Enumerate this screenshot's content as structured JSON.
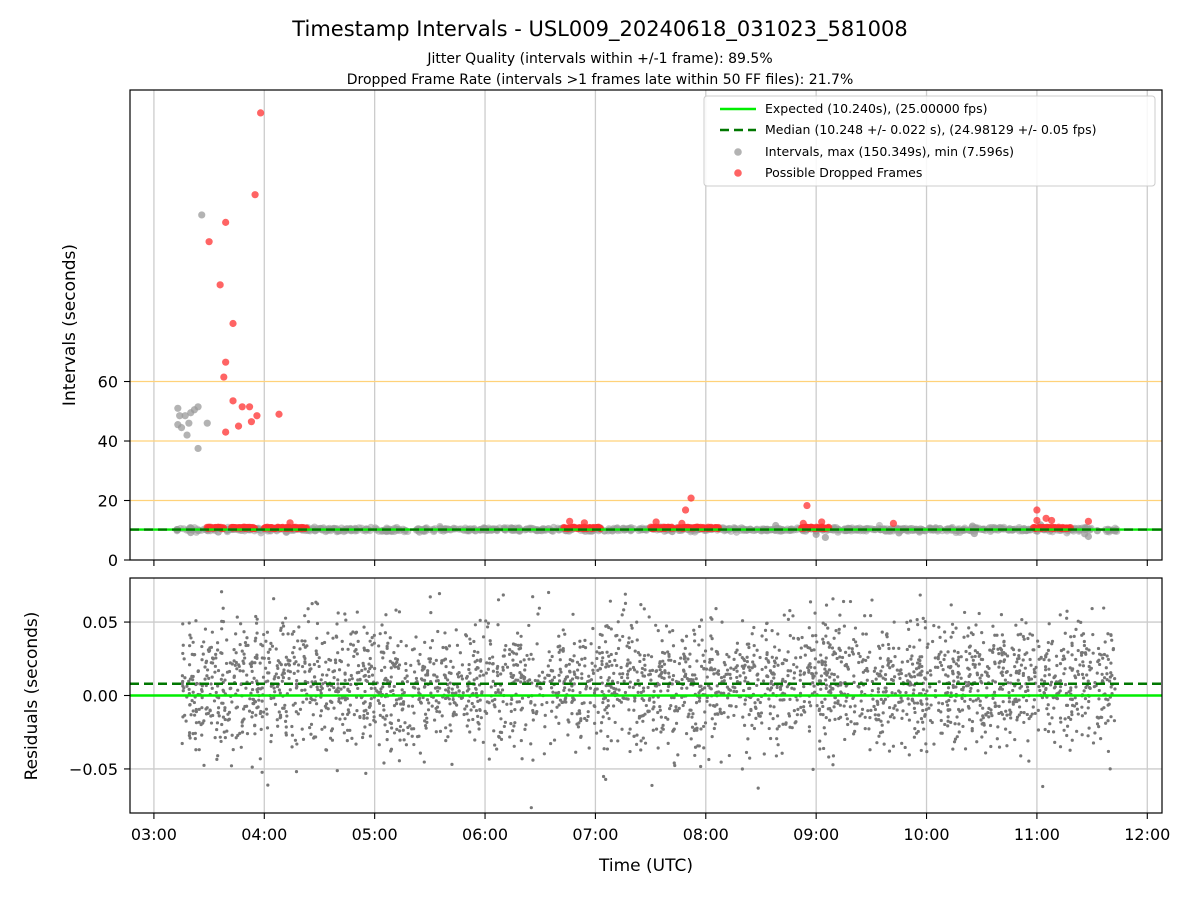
{
  "figure": {
    "title": "Timestamp Intervals - USL009_20240618_031023_581008",
    "subtitle_1": "Jitter Quality (intervals within +/-1 frame): 89.5%",
    "subtitle_2": "Dropped Frame Rate (intervals >1 frames late within 50 FF files): 21.7%",
    "xlabel": "Time (UTC)"
  },
  "colors": {
    "expected": "#00ee00",
    "median": "#007700",
    "intervals": "#999999",
    "dropped": "#ff3030",
    "threshold": "#ffd27a",
    "grid": "#cccccc",
    "residuals": "#777777"
  },
  "chart_data": [
    {
      "type": "scatter",
      "ylabel": "Intervals (seconds)",
      "xlim": [
        "02:47",
        "12:08"
      ],
      "ylim": [
        0,
        158
      ],
      "x_ticks": [
        "03:00",
        "04:00",
        "05:00",
        "06:00",
        "07:00",
        "08:00",
        "09:00",
        "10:00",
        "11:00",
        "12:00"
      ],
      "y_ticks": [
        0,
        20,
        40,
        60
      ],
      "grid": true,
      "legend_position": "top-right",
      "threshold_lines": [
        20,
        40,
        60
      ],
      "expected_line": {
        "label": "Expected (10.240s), (25.00000 fps)",
        "y": 10.24
      },
      "median_line": {
        "label": "Median (10.248 +/- 0.022 s), (24.98129 +/- 0.05 fps)",
        "y": 10.248
      },
      "series": [
        {
          "name": "Intervals, max (150.349s), min (7.596s)",
          "points": [
            [
              "03:13",
              51
            ],
            [
              "03:14",
              48.5
            ],
            [
              "03:13",
              45.5
            ],
            [
              "03:15",
              44.5
            ],
            [
              "03:17",
              48.5
            ],
            [
              "03:18",
              42
            ],
            [
              "03:19",
              46
            ],
            [
              "03:20",
              49.5
            ],
            [
              "03:22",
              50.5
            ],
            [
              "03:24",
              51.5
            ],
            [
              "03:24",
              37.5
            ],
            [
              "03:26",
              116
            ],
            [
              "03:29",
              46
            ],
            [
              "03:20",
              9.2
            ],
            [
              "03:35",
              9.4
            ],
            [
              "04:12",
              9.3
            ],
            [
              "08:38",
              11.6
            ],
            [
              "09:00",
              8.6
            ],
            [
              "09:05",
              7.6
            ],
            [
              "10:05",
              10.8
            ],
            [
              "10:25",
              11.4
            ],
            [
              "10:26",
              8.9
            ],
            [
              "09:45",
              9.1
            ],
            [
              "11:26",
              8.8
            ],
            [
              "11:28",
              7.9
            ],
            [
              "11:02",
              11.8
            ]
          ]
        },
        {
          "name": "Possible Dropped Frames",
          "points": [
            [
              "03:58",
              150.3
            ],
            [
              "03:55",
              122.8
            ],
            [
              "03:39",
              113.5
            ],
            [
              "03:30",
              107
            ],
            [
              "03:36",
              92.5
            ],
            [
              "03:43",
              79.5
            ],
            [
              "03:39",
              66.5
            ],
            [
              "03:38",
              61.5
            ],
            [
              "03:43",
              53.5
            ],
            [
              "03:46",
              45
            ],
            [
              "03:48",
              51.5
            ],
            [
              "03:52",
              51.5
            ],
            [
              "03:56",
              48.5
            ],
            [
              "03:53",
              46.5
            ],
            [
              "03:39",
              43
            ],
            [
              "04:08",
              49
            ],
            [
              "04:14",
              12.5
            ],
            [
              "06:46",
              13
            ],
            [
              "06:54",
              12.5
            ],
            [
              "07:33",
              12.8
            ],
            [
              "07:47",
              12.3
            ],
            [
              "07:49",
              16.8
            ],
            [
              "07:52",
              20.8
            ],
            [
              "08:53",
              12.3
            ],
            [
              "08:55",
              18.3
            ],
            [
              "09:03",
              12.8
            ],
            [
              "09:42",
              12.3
            ],
            [
              "11:00",
              16.8
            ],
            [
              "11:05",
              14
            ],
            [
              "11:08",
              13.3
            ],
            [
              "11:00",
              13.3
            ],
            [
              "11:28",
              13
            ]
          ],
          "clusters_near_expected": [
            [
              "03:29",
              "03:38"
            ],
            [
              "03:42",
              "03:55"
            ],
            [
              "04:00",
              "04:23"
            ],
            [
              "06:43",
              "07:03"
            ],
            [
              "07:30",
              "07:42"
            ],
            [
              "07:45",
              "08:07"
            ],
            [
              "08:52",
              "09:07"
            ],
            [
              "10:58",
              "11:18"
            ]
          ]
        }
      ]
    },
    {
      "type": "scatter",
      "ylabel": "Residuals (seconds)",
      "xlim": [
        "02:47",
        "12:08"
      ],
      "ylim": [
        -0.08,
        0.08
      ],
      "x_ticks": [
        "03:00",
        "04:00",
        "05:00",
        "06:00",
        "07:00",
        "08:00",
        "09:00",
        "10:00",
        "11:00",
        "12:00"
      ],
      "y_ticks": [
        0.05,
        0.0,
        -0.05
      ],
      "y_tick_labels": [
        "0.05",
        "0.00",
        "−0.05"
      ],
      "grid": true,
      "expected_line": {
        "y": 0.0
      },
      "median_line": {
        "y": 0.008
      },
      "series": [
        {
          "name": "Residuals",
          "x_range": [
            "03:15",
            "11:43"
          ],
          "sample_count": 3000,
          "center": 0.008,
          "std": 0.022,
          "clip": [
            -0.078,
            0.074
          ]
        }
      ]
    }
  ]
}
